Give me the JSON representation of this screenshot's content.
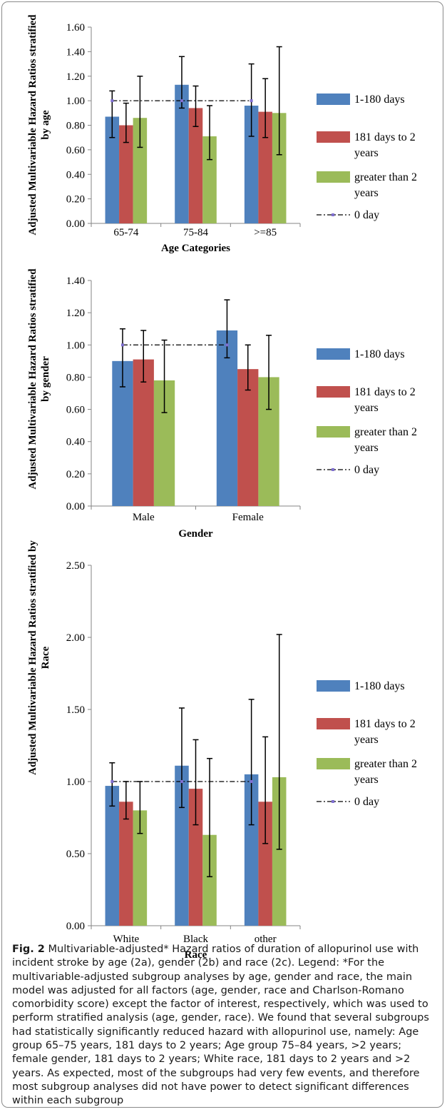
{
  "colors": {
    "series1": "#4F81BD",
    "series2": "#C0504D",
    "series3": "#9BBB59",
    "reference": "#000000",
    "marker": "#7F6FD0"
  },
  "legend": [
    "1-180 days",
    "181  days to 2 years",
    "greater than 2 years",
    "0 day"
  ],
  "chart_data": [
    {
      "type": "bar",
      "ylabel": "Adjusted Multivariable Hazard Ratios stratified by age",
      "xlabel": "Age Categories",
      "categories": [
        "65-74",
        "75-84",
        ">=85"
      ],
      "ylim": [
        0,
        1.6
      ],
      "yticks": [
        "0.00",
        "0.20",
        "0.40",
        "0.60",
        "0.80",
        "1.00",
        "1.20",
        "1.40",
        "1.60"
      ],
      "series": [
        {
          "name": "1-180 days",
          "values": [
            0.87,
            1.13,
            0.96
          ],
          "err_low": [
            0.7,
            0.94,
            0.71
          ],
          "err_high": [
            1.08,
            1.36,
            1.3
          ]
        },
        {
          "name": "181  days to 2 years",
          "values": [
            0.8,
            0.94,
            0.91
          ],
          "err_low": [
            0.66,
            0.79,
            0.7
          ],
          "err_high": [
            0.98,
            1.12,
            1.18
          ]
        },
        {
          "name": "greater than 2 years",
          "values": [
            0.86,
            0.71,
            0.9
          ],
          "err_low": [
            0.62,
            0.52,
            0.56
          ],
          "err_high": [
            1.2,
            0.96,
            1.44
          ]
        }
      ],
      "reference": {
        "name": "0 day",
        "value": 1.0
      }
    },
    {
      "type": "bar",
      "ylabel": "Adjusted Multivariable Hazard Ratios stratified by gender",
      "xlabel": "Gender",
      "categories": [
        "Male",
        "Female"
      ],
      "ylim": [
        0,
        1.4
      ],
      "yticks": [
        "0.00",
        "0.20",
        "0.40",
        "0.60",
        "0.80",
        "1.00",
        "1.20",
        "1.40"
      ],
      "series": [
        {
          "name": "1-180 days",
          "values": [
            0.9,
            1.09
          ],
          "err_low": [
            0.74,
            0.92
          ],
          "err_high": [
            1.1,
            1.28
          ]
        },
        {
          "name": "181  days to 2 years",
          "values": [
            0.91,
            0.85
          ],
          "err_low": [
            0.77,
            0.72
          ],
          "err_high": [
            1.09,
            1.0
          ]
        },
        {
          "name": "greater than 2 years",
          "values": [
            0.78,
            0.8
          ],
          "err_low": [
            0.58,
            0.6
          ],
          "err_high": [
            1.03,
            1.06
          ]
        }
      ],
      "reference": {
        "name": "0 day",
        "value": 1.0
      }
    },
    {
      "type": "bar",
      "ylabel": "Adjusted Multivariable Hazard Ratios stratified by  Race",
      "xlabel": "Race",
      "categories": [
        "White",
        "Black",
        "other"
      ],
      "ylim": [
        0,
        2.5
      ],
      "yticks": [
        "0.00",
        "0.50",
        "1.00",
        "1.50",
        "2.00",
        "2.50"
      ],
      "series": [
        {
          "name": "1-180 days",
          "values": [
            0.97,
            1.11,
            1.05
          ],
          "err_low": [
            0.83,
            0.82,
            0.7
          ],
          "err_high": [
            1.13,
            1.51,
            1.57
          ]
        },
        {
          "name": "181  days to 2 years",
          "values": [
            0.86,
            0.95,
            0.86
          ],
          "err_low": [
            0.74,
            0.7,
            0.57
          ],
          "err_high": [
            1.0,
            1.29,
            1.31
          ]
        },
        {
          "name": "greater than 2 years",
          "values": [
            0.8,
            0.63,
            1.03
          ],
          "err_low": [
            0.64,
            0.34,
            0.53
          ],
          "err_high": [
            1.0,
            1.16,
            2.02
          ]
        }
      ],
      "reference": {
        "name": "0 day",
        "value": 1.0
      }
    }
  ],
  "caption": {
    "label": "Fig. 2",
    "text": " Multivariable-adjusted* Hazard ratios of duration of allopurinol use with incident stroke by age (2a), gender (2b) and race (2c). Legend: *For the multivariable-adjusted subgroup analyses by age, gender and race, the main model was adjusted for all factors (age, gender, race and Charlson-Romano comorbidity score) except the factor of interest, respectively, which was used to perform stratified analysis (age, gender, race). We found that several subgroups had statistically significantly reduced hazard with allopurinol use, namely: Age group 65–75 years, 181 days to 2 years; Age group 75–84 years, >2 years; female gender, 181 days to 2 years; White race, 181 days to 2 years and >2 years. As expected, most of the subgroups had very few events, and therefore most subgroup analyses did not have power to detect significant differences within each subgroup"
  }
}
